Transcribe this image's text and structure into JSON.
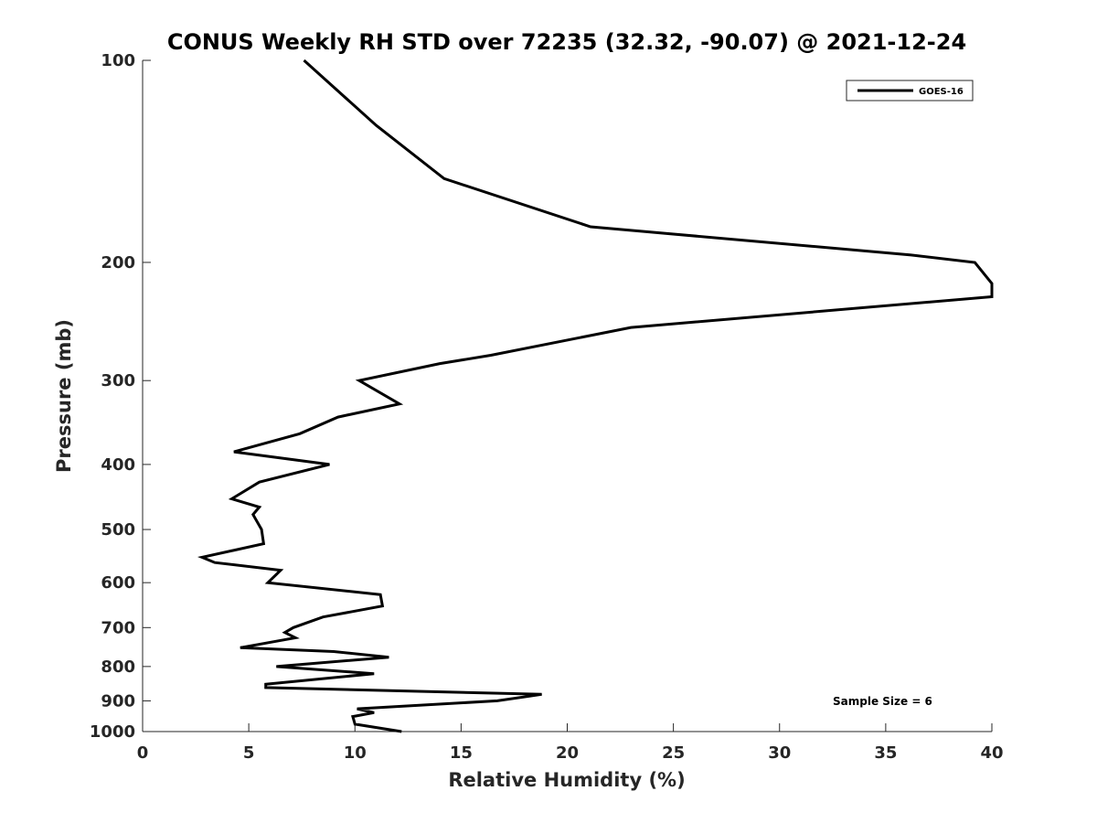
{
  "chart_data": {
    "type": "line",
    "title": "CONUS Weekly RH STD over 72235 (32.32, -90.07) @ 2021-12-24",
    "xlabel": "Relative Humidity (%)",
    "ylabel": "Pressure (mb)",
    "xlim": [
      0,
      40
    ],
    "ylim": [
      100,
      1000
    ],
    "y_scale": "log",
    "y_reversed": true,
    "grid": false,
    "legend_position": "top-right",
    "x_ticks": [
      0,
      5,
      10,
      15,
      20,
      25,
      30,
      35,
      40
    ],
    "y_ticks": [
      100,
      200,
      300,
      400,
      500,
      600,
      700,
      800,
      900,
      1000
    ],
    "annotation": "Sample Size = 6",
    "series": [
      {
        "name": "GOES-16",
        "color": "#000000",
        "points": [
          [
            7.6,
            100
          ],
          [
            11.0,
            125
          ],
          [
            14.2,
            150
          ],
          [
            21.1,
            177
          ],
          [
            36.2,
            195
          ],
          [
            39.2,
            200
          ],
          [
            40.0,
            215
          ],
          [
            40.0,
            225
          ],
          [
            23.0,
            250
          ],
          [
            16.4,
            275
          ],
          [
            14.0,
            283
          ],
          [
            10.2,
            300
          ],
          [
            12.1,
            325
          ],
          [
            9.2,
            340
          ],
          [
            7.4,
            360
          ],
          [
            4.3,
            383
          ],
          [
            8.8,
            400
          ],
          [
            5.5,
            425
          ],
          [
            4.2,
            450
          ],
          [
            5.5,
            463
          ],
          [
            5.2,
            475
          ],
          [
            5.6,
            500
          ],
          [
            5.7,
            525
          ],
          [
            2.8,
            550
          ],
          [
            3.4,
            560
          ],
          [
            6.5,
            575
          ],
          [
            5.9,
            600
          ],
          [
            11.2,
            625
          ],
          [
            11.3,
            650
          ],
          [
            8.5,
            675
          ],
          [
            7.1,
            700
          ],
          [
            6.7,
            712
          ],
          [
            7.2,
            725
          ],
          [
            4.6,
            750
          ],
          [
            9.0,
            760
          ],
          [
            11.6,
            775
          ],
          [
            6.3,
            800
          ],
          [
            10.9,
            820
          ],
          [
            5.8,
            850
          ],
          [
            5.8,
            860
          ],
          [
            18.8,
            880
          ],
          [
            16.7,
            900
          ],
          [
            10.1,
            925
          ],
          [
            10.9,
            937
          ],
          [
            9.9,
            950
          ],
          [
            10.0,
            975
          ],
          [
            12.2,
            1000
          ]
        ]
      }
    ]
  }
}
